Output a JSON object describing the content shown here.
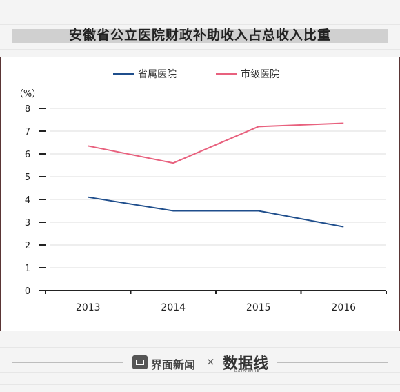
{
  "chart_data": {
    "type": "line",
    "title": "安徽省公立医院财政补助收入占总收入比重",
    "categories": [
      "2013",
      "2014",
      "2015",
      "2016"
    ],
    "ylabel": "（%）",
    "ylim": [
      0,
      8
    ],
    "yticks": [
      "0",
      "1",
      "2",
      "3",
      "4",
      "5",
      "6",
      "7",
      "8"
    ],
    "grid": true,
    "legend": "top-center",
    "series": [
      {
        "name": "省属医院",
        "color": "#1f4e8c",
        "values": [
          4.1,
          3.5,
          3.5,
          2.8
        ]
      },
      {
        "name": "市级医院",
        "color": "#e8617e",
        "values": [
          6.35,
          5.6,
          7.2,
          7.35
        ]
      }
    ]
  },
  "footer": {
    "brand": "界面新闻",
    "times": "×",
    "logo": "数据线",
    "logo_sub": "DATA WIRE"
  }
}
